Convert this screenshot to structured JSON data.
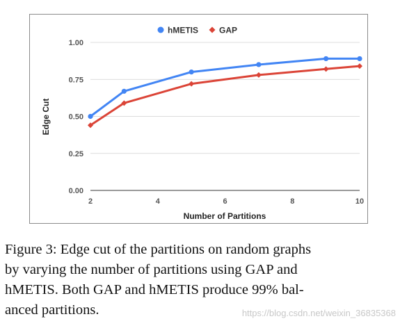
{
  "chart_data": {
    "type": "line",
    "title": "",
    "xlabel": "Number of Partitions",
    "ylabel": "Edge Cut",
    "xlim": [
      2,
      10
    ],
    "ylim": [
      0,
      1
    ],
    "x_ticks": [
      "2",
      "4",
      "6",
      "8",
      "10"
    ],
    "y_ticks": [
      "0.00",
      "0.25",
      "0.50",
      "0.75",
      "1.00"
    ],
    "grid": true,
    "legend_position": "top-center",
    "series": [
      {
        "name": "hMETIS",
        "color": "#4285f4",
        "marker": "circle",
        "points": [
          [
            2,
            0.5
          ],
          [
            3,
            0.67
          ],
          [
            5,
            0.8
          ],
          [
            7,
            0.85
          ],
          [
            9,
            0.89
          ],
          [
            10,
            0.89
          ]
        ]
      },
      {
        "name": "GAP",
        "color": "#db4437",
        "marker": "diamond",
        "points": [
          [
            2,
            0.44
          ],
          [
            3,
            0.59
          ],
          [
            5,
            0.72
          ],
          [
            7,
            0.78
          ],
          [
            9,
            0.82
          ],
          [
            10,
            0.84
          ]
        ]
      }
    ]
  },
  "caption": {
    "lines": [
      "Figure 3: Edge cut of the partitions on random graphs",
      "by varying the number of partitions using GAP and",
      "hMETIS. Both GAP and hMETIS produce 99% bal-",
      "anced partitions."
    ]
  },
  "watermark": "https://blog.csdn.net/weixin_36835368"
}
